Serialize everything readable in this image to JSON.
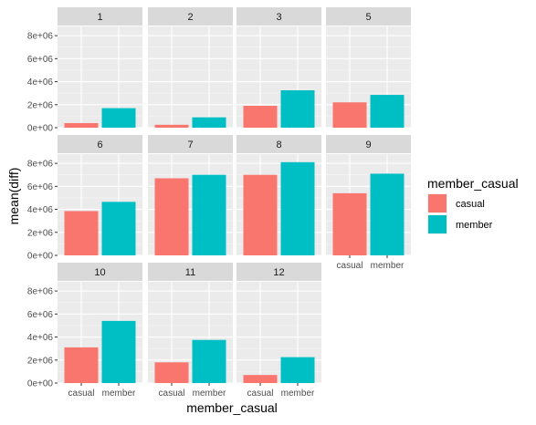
{
  "chart_data": {
    "type": "bar",
    "facet_label": "month",
    "xlabel": "member_casual",
    "ylabel": "mean(diff)",
    "categories": [
      "casual",
      "member"
    ],
    "y_ticks": [
      0,
      2000000,
      4000000,
      6000000,
      8000000
    ],
    "y_tick_labels": [
      "0e+00",
      "2e+06",
      "4e+06",
      "6e+06",
      "8e+06"
    ],
    "ylim": [
      0,
      8800000
    ],
    "grid": true,
    "legend": {
      "title": "member_casual",
      "position": "right",
      "entries": [
        {
          "label": "casual",
          "color": "#F8766D"
        },
        {
          "label": "member",
          "color": "#00BFC4"
        }
      ]
    },
    "colors": {
      "casual": "#F8766D",
      "member": "#00BFC4",
      "panel_bg": "#EBEBEB",
      "strip_bg": "#D9D9D9"
    },
    "facets": [
      {
        "label": "1",
        "values": [
          400000,
          1700000
        ]
      },
      {
        "label": "2",
        "values": [
          250000,
          900000
        ]
      },
      {
        "label": "3",
        "values": [
          1900000,
          3250000
        ]
      },
      {
        "label": "5",
        "values": [
          2200000,
          2850000
        ]
      },
      {
        "label": "6",
        "values": [
          3850000,
          4650000
        ]
      },
      {
        "label": "7",
        "values": [
          6700000,
          7000000
        ]
      },
      {
        "label": "8",
        "values": [
          7000000,
          8100000
        ]
      },
      {
        "label": "9",
        "values": [
          5400000,
          7100000
        ]
      },
      {
        "label": "10",
        "values": [
          3100000,
          5400000
        ]
      },
      {
        "label": "11",
        "values": [
          1800000,
          3750000
        ]
      },
      {
        "label": "12",
        "values": [
          700000,
          2250000
        ]
      }
    ]
  }
}
